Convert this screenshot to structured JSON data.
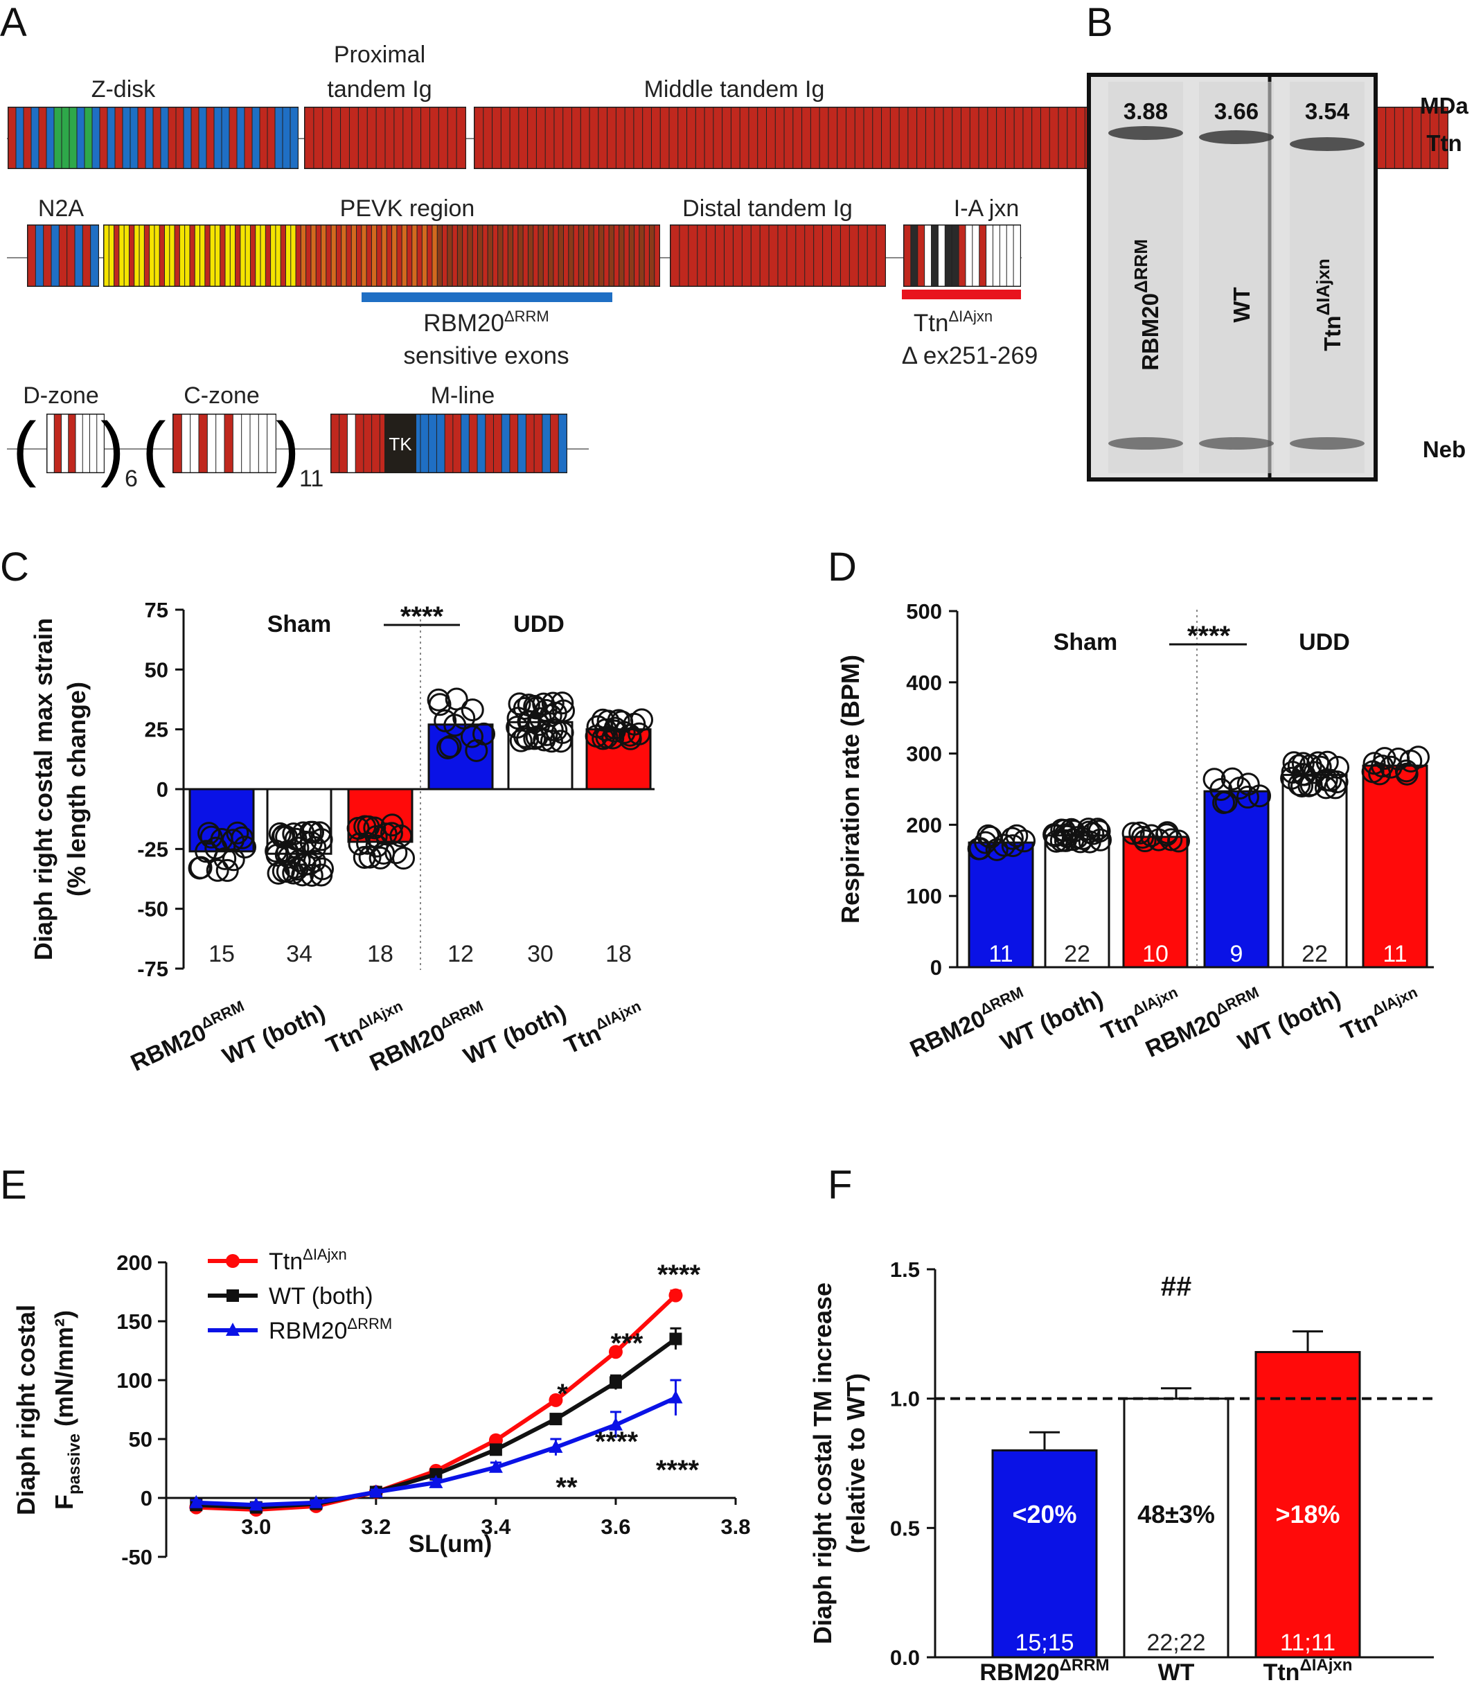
{
  "panels": {
    "A": "A",
    "B": "B",
    "C": "C",
    "D": "D",
    "E": "E",
    "F": "F"
  },
  "colors": {
    "blue": "#0a12e6",
    "red": "#ff0a0a",
    "black": "#111111",
    "dark_red": "#c0281e",
    "yellow": "#f5e400",
    "bar_blue": "#1f6fc4"
  },
  "panel_a": {
    "zdisk": "Z-disk",
    "prox1": "Proximal",
    "prox2": "tandem Ig",
    "middle": "Middle tandem Ig",
    "n2a": "N2A",
    "pevk": "PEVK region",
    "distal": "Distal tandem Ig",
    "iajxn": "I-A jxn",
    "rbm_base": "RBM20",
    "rbm_sup": "ΔRRM",
    "rbm_sub": "sensitive exons",
    "ttn_base": "Ttn",
    "ttn_sup": "ΔIAjxn",
    "ttn_sub": "Δ ex251-269",
    "dzone": "D-zone",
    "czone": "C-zone",
    "mline": "M-line",
    "tk": "TK",
    "d_rep": "6",
    "c_rep": "11"
  },
  "panel_b": {
    "values": [
      "3.88",
      "3.66",
      "3.54"
    ],
    "lanes": [
      "RBM20",
      "WT",
      "Ttn"
    ],
    "lane_sups": [
      "ΔRRM",
      "",
      "ΔIAjxn"
    ],
    "right_labels": {
      "mda": "MDa",
      "ttn": "Ttn",
      "neb": "Neb"
    }
  },
  "chart_data": [
    {
      "panel": "C",
      "type": "bar",
      "ylabel": "Diaph right costal max strain",
      "ylabel2": "(% length change)",
      "ylim": [
        -75,
        75
      ],
      "yticks": [
        "75",
        "50",
        "25",
        "0",
        "-25",
        "-50",
        "-75"
      ],
      "groups": [
        "Sham",
        "UDD"
      ],
      "significance": "****",
      "categories": [
        "RBM20",
        "WT (both)",
        "Ttn",
        "RBM20",
        "WT (both)",
        "Ttn"
      ],
      "category_sups": [
        "ΔRRM",
        "",
        "ΔIAjxn",
        "ΔRRM",
        "",
        "ΔIAjxn"
      ],
      "values": [
        -26,
        -27,
        -22,
        27,
        28,
        25
      ],
      "n": [
        "15",
        "34",
        "18",
        "12",
        "30",
        "18"
      ],
      "bar_colors": [
        "blue",
        "white",
        "red",
        "blue",
        "white",
        "red"
      ]
    },
    {
      "panel": "D",
      "type": "bar",
      "ylabel": "Respiration rate (BPM)",
      "ylim": [
        0,
        500
      ],
      "yticks": [
        "500",
        "400",
        "300",
        "200",
        "100",
        "0"
      ],
      "groups": [
        "Sham",
        "UDD"
      ],
      "significance": "****",
      "categories": [
        "RBM20",
        "WT (both)",
        "Ttn",
        "RBM20",
        "WT (both)",
        "Ttn"
      ],
      "category_sups": [
        "ΔRRM",
        "",
        "ΔIAjxn",
        "ΔRRM",
        "",
        "ΔIAjxn"
      ],
      "values": [
        175,
        185,
        183,
        247,
        270,
        283
      ],
      "n": [
        "11",
        "22",
        "10",
        "9",
        "22",
        "11"
      ],
      "bar_colors": [
        "blue",
        "white",
        "red",
        "blue",
        "white",
        "red"
      ]
    },
    {
      "panel": "E",
      "type": "line",
      "ylabel": "Diaph right costal",
      "ylabel_sub": "passive",
      "ylabel_pre": "F",
      "ylabel_unit": "(mN/mm²)",
      "xlabel": "SL(um)",
      "xlim": [
        2.85,
        3.8
      ],
      "ylim": [
        -50,
        200
      ],
      "xticks": [
        "3.0",
        "3.2",
        "3.4",
        "3.6",
        "3.8"
      ],
      "yticks": [
        "200",
        "150",
        "100",
        "50",
        "0",
        "-50"
      ],
      "x": [
        2.9,
        3.0,
        3.1,
        3.2,
        3.3,
        3.4,
        3.5,
        3.6,
        3.7
      ],
      "series": [
        {
          "name": "Ttn",
          "sup": "ΔIAjxn",
          "color": "red",
          "marker": "circle",
          "values": [
            -8,
            -10,
            -7,
            5,
            23,
            49,
            83,
            124,
            172
          ],
          "errors": [
            2,
            2,
            2,
            2,
            2,
            3,
            3,
            3,
            4
          ]
        },
        {
          "name": "WT (both)",
          "sup": "",
          "color": "black",
          "marker": "square",
          "values": [
            -6,
            -8,
            -5,
            5,
            20,
            41,
            67,
            98,
            135
          ],
          "errors": [
            2,
            2,
            2,
            2,
            2,
            3,
            3,
            6,
            9
          ]
        },
        {
          "name": "RBM20",
          "sup": "ΔRRM",
          "color": "blue",
          "marker": "triangle",
          "values": [
            -4,
            -6,
            -4,
            5,
            13,
            26,
            43,
            62,
            85
          ],
          "errors": [
            2,
            2,
            2,
            2,
            3,
            4,
            7,
            11,
            15
          ]
        }
      ],
      "annotations": [
        "****",
        "***",
        "*",
        "****",
        "****",
        "**"
      ]
    },
    {
      "panel": "F",
      "type": "bar",
      "ylabel": "Diaph right costal TM increase",
      "ylabel2": "(relative to WT)",
      "ylim": [
        0,
        1.5
      ],
      "yticks": [
        "1.5",
        "1.0",
        "0.5",
        "0.0"
      ],
      "significance": "##",
      "reference_line": 1.0,
      "categories": [
        "RBM20",
        "WT",
        "Ttn"
      ],
      "category_sups": [
        "ΔRRM",
        "",
        "ΔIAjxn"
      ],
      "values": [
        0.8,
        1.0,
        1.18
      ],
      "errors": [
        0.07,
        0.04,
        0.08
      ],
      "bar_labels": [
        "<20%",
        "48±3%",
        ">18%"
      ],
      "n": [
        "15;15",
        "22;22",
        "11;11"
      ],
      "bar_colors": [
        "blue",
        "white",
        "red"
      ]
    }
  ]
}
